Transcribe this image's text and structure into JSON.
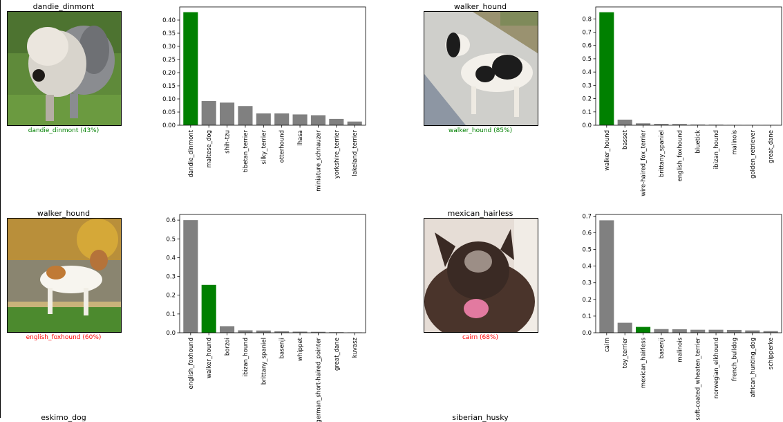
{
  "colors": {
    "correct": "#008000",
    "other": "#808080",
    "wrong": "#ff0000"
  },
  "predictions": [
    {
      "title": "dandie_dinmont",
      "caption": "dandie_dinmont (43%)",
      "caption_color": "#008000",
      "image": "dog-photo-dandie-dinmont"
    },
    {
      "title": "walker_hound",
      "caption": "walker_hound (85%)",
      "caption_color": "#008000",
      "image": "dog-photo-walker-hound"
    },
    {
      "title": "walker_hound",
      "caption": "english_foxhound (60%)",
      "caption_color": "#ff0000",
      "image": "dog-photo-walker-hound-2"
    },
    {
      "title": "mexican_hairless",
      "caption": "cairn (68%)",
      "caption_color": "#ff0000",
      "image": "dog-photo-mexican-hairless"
    }
  ],
  "next_row_titles": [
    "eskimo_dog",
    "siberian_husky"
  ],
  "chart_data": [
    {
      "type": "bar",
      "categories": [
        "dandie_dinmont",
        "maltese_dog",
        "shih-tzu",
        "tibetan_terrier",
        "silky_terrier",
        "otterhound",
        "lhasa",
        "miniature_schnauzer",
        "yorkshire_terrier",
        "lakeland_terrier"
      ],
      "values": [
        0.43,
        0.092,
        0.086,
        0.073,
        0.045,
        0.045,
        0.041,
        0.038,
        0.024,
        0.014
      ],
      "highlight_index": 0,
      "ylim": [
        0,
        0.45
      ],
      "yticks": [
        "0.00",
        "0.05",
        "0.10",
        "0.15",
        "0.20",
        "0.25",
        "0.30",
        "0.35",
        "0.40"
      ],
      "ytick_values": [
        0,
        0.05,
        0.1,
        0.15,
        0.2,
        0.25,
        0.3,
        0.35,
        0.4
      ]
    },
    {
      "type": "bar",
      "categories": [
        "walker_hound",
        "basset",
        "wire-haired_fox_terrier",
        "brittany_spaniel",
        "english_foxhound",
        "bluetick",
        "ibizan_hound",
        "malinois",
        "golden_retriever",
        "great_dane"
      ],
      "values": [
        0.85,
        0.042,
        0.014,
        0.01,
        0.009,
        0.005,
        0.004,
        0.002,
        0.001,
        0.001
      ],
      "highlight_index": 0,
      "ylim": [
        0,
        0.89
      ],
      "yticks": [
        "0.0",
        "0.1",
        "0.2",
        "0.3",
        "0.4",
        "0.5",
        "0.6",
        "0.7",
        "0.8"
      ],
      "ytick_values": [
        0,
        0.1,
        0.2,
        0.3,
        0.4,
        0.5,
        0.6,
        0.7,
        0.8
      ]
    },
    {
      "type": "bar",
      "categories": [
        "english_foxhound",
        "walker_hound",
        "borzoi",
        "ibizan_hound",
        "brittany_spaniel",
        "basenji",
        "whippet",
        "german_short-haired_pointer",
        "great_dane",
        "kuvasz"
      ],
      "values": [
        0.6,
        0.255,
        0.035,
        0.013,
        0.012,
        0.008,
        0.006,
        0.005,
        0.003,
        0.002
      ],
      "highlight_index": 1,
      "ylim": [
        0,
        0.63
      ],
      "yticks": [
        "0.0",
        "0.1",
        "0.2",
        "0.3",
        "0.4",
        "0.5",
        "0.6"
      ],
      "ytick_values": [
        0,
        0.1,
        0.2,
        0.3,
        0.4,
        0.5,
        0.6
      ]
    },
    {
      "type": "bar",
      "categories": [
        "cairn",
        "toy_terrier",
        "mexican_hairless",
        "basenji",
        "malinois",
        "soft-coated_wheaten_terrier",
        "norwegian_elkhound",
        "french_bulldog",
        "african_hunting_dog",
        "schipperke"
      ],
      "values": [
        0.675,
        0.06,
        0.035,
        0.022,
        0.021,
        0.018,
        0.018,
        0.017,
        0.014,
        0.01
      ],
      "highlight_index": 2,
      "ylim": [
        0,
        0.71
      ],
      "yticks": [
        "0.0",
        "0.1",
        "0.2",
        "0.3",
        "0.4",
        "0.5",
        "0.6",
        "0.7"
      ],
      "ytick_values": [
        0,
        0.1,
        0.2,
        0.3,
        0.4,
        0.5,
        0.6,
        0.7
      ]
    }
  ]
}
